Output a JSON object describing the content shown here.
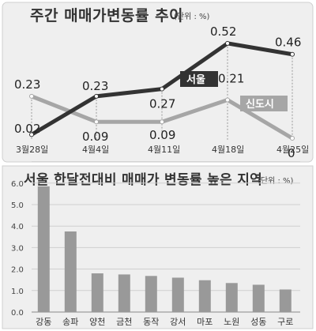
{
  "chart_data": [
    {
      "type": "line",
      "title": "주간 매매가변동률 추이",
      "unit_note": "(단위 : %)",
      "x": [
        "3월28일",
        "4월4일",
        "4월11일",
        "4월18일",
        "4월25일"
      ],
      "series": [
        {
          "name": "서울",
          "values": [
            0.02,
            0.23,
            0.27,
            0.52,
            0.46
          ],
          "color": "#333333"
        },
        {
          "name": "신도시",
          "values": [
            0.23,
            0.09,
            0.09,
            0.21,
            0
          ],
          "color": "#a6a6a6"
        }
      ],
      "value_labels": {
        "서울": [
          "0.02",
          "0.23",
          "0.27",
          "0.52",
          "0.46"
        ],
        "신도시": [
          "0.23",
          "0.09",
          "0.09",
          "0.21",
          "0"
        ]
      }
    },
    {
      "type": "bar",
      "title": "서울 한달전대비 매매가 변동률 높은 지역",
      "unit_note": "(단위 : %)",
      "categories": [
        "강동",
        "송파",
        "양천",
        "금천",
        "동작",
        "강서",
        "마포",
        "노원",
        "성동",
        "구로"
      ],
      "values": [
        5.85,
        3.75,
        1.8,
        1.75,
        1.68,
        1.6,
        1.48,
        1.35,
        1.27,
        1.05
      ],
      "ylim": [
        0,
        7
      ],
      "yticks": [
        "0.0",
        "1.0",
        "2.0",
        "3.0",
        "4.0",
        "5.0",
        "6.0"
      ],
      "grid": true,
      "bar_color": "#999999"
    }
  ]
}
